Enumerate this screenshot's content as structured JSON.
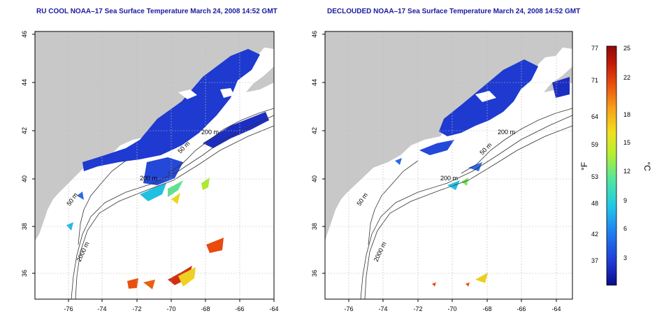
{
  "panels": [
    {
      "title": "RU COOL NOAA–17 Sea Surface Temperature March 24, 2008 14:52 GMT",
      "x_ticks": [
        "-76",
        "-74",
        "-72",
        "-70",
        "-68",
        "-66",
        "-64"
      ],
      "y_ticks": [
        "36",
        "38",
        "40",
        "42",
        "44",
        "46"
      ],
      "contour_labels": [
        "50 m",
        "200 m",
        "200 m",
        "50 m",
        "2000 m"
      ]
    },
    {
      "title": "DECLOUDED NOAA–17 Sea Surface Temperature March 24, 2008 14:52 GMT",
      "x_ticks": [
        "-76",
        "-74",
        "-72",
        "-70",
        "-68",
        "-66",
        "-64"
      ],
      "y_ticks": [
        "36",
        "38",
        "40",
        "42",
        "44",
        "46"
      ],
      "contour_labels": [
        "50 m",
        "200 m",
        "200 m",
        "50 m",
        "2000 m"
      ]
    }
  ],
  "colorbar": {
    "f_label": "°F",
    "c_label": "°C",
    "f_ticks": [
      "77",
      "71",
      "64",
      "59",
      "53",
      "48",
      "42",
      "37"
    ],
    "c_ticks": [
      "25",
      "22",
      "18",
      "15",
      "12",
      "9",
      "6",
      "3"
    ],
    "colors": [
      "#0a0a8c",
      "#1f3cd6",
      "#1f7ef0",
      "#20c8e8",
      "#4ee6a0",
      "#b8ee30",
      "#f0e020",
      "#f8a018",
      "#e85010",
      "#c01808",
      "#8c0a0a"
    ]
  },
  "colors": {
    "land": "#c8c8c8",
    "ocean": "#ffffff",
    "title": "#1a1aa0",
    "grid": "#bbbbbb"
  }
}
